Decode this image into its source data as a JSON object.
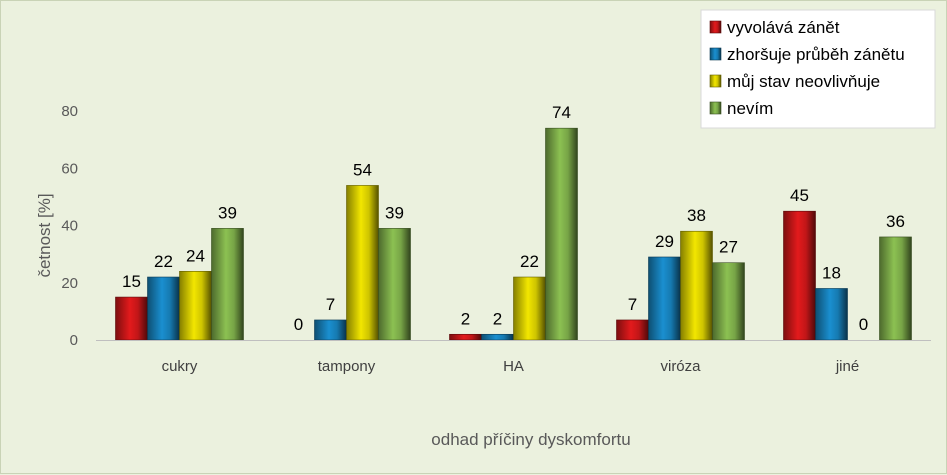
{
  "chart_data": {
    "type": "bar",
    "categories": [
      "cukry",
      "tampony",
      "HA",
      "viróza",
      "jiné"
    ],
    "series": [
      {
        "name": "vyvolává zánět",
        "values": [
          15,
          0,
          2,
          7,
          45
        ],
        "color": "#e31a1c"
      },
      {
        "name": "zhoršuje průběh zánětu",
        "values": [
          22,
          7,
          2,
          29,
          18
        ],
        "color": "#1a8fd0"
      },
      {
        "name": "můj stav neovlivňuje",
        "values": [
          24,
          54,
          22,
          38,
          0
        ],
        "color": "#f2e600"
      },
      {
        "name": "nevím",
        "values": [
          39,
          39,
          74,
          27,
          36
        ],
        "color": "#8cc152"
      }
    ],
    "xlabel": "odhad příčiny dyskomfortu",
    "ylabel": "četnost [%]",
    "ylim": [
      0,
      80
    ],
    "yticks": [
      0,
      20,
      40,
      60,
      80
    ],
    "grid": false,
    "legend": "top-right",
    "data_labels": true
  }
}
